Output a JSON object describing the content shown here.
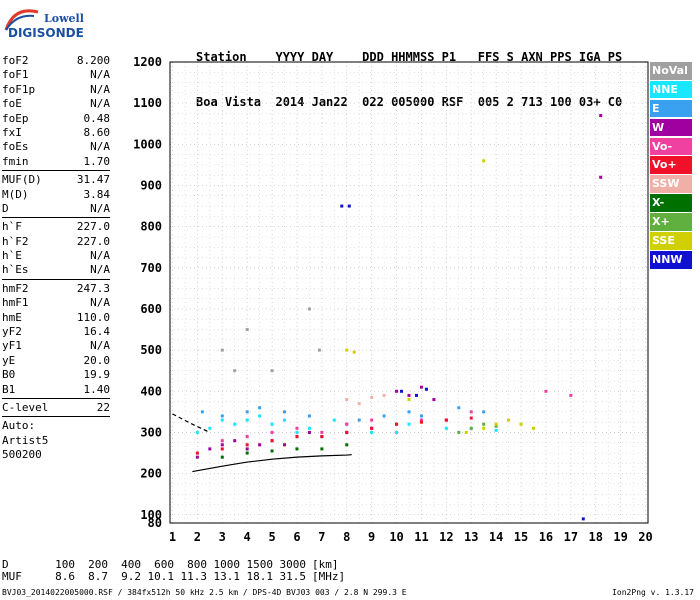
{
  "logo": {
    "line1": "Lowell",
    "line2": "DIGISONDE"
  },
  "header": {
    "labels": "Station    YYYY DAY    DDD HHMMSS P1   FFS S AXN PPS IGA PS",
    "values": "Boa Vista  2014 Jan22  022 005000 RSF  005 2 713 100 03+ C0"
  },
  "params_group1": [
    {
      "name": "foF2",
      "value": "8.200"
    },
    {
      "name": "foF1",
      "value": "N/A"
    },
    {
      "name": "foF1p",
      "value": "N/A"
    },
    {
      "name": "foE",
      "value": "N/A"
    },
    {
      "name": "foEp",
      "value": "0.48"
    },
    {
      "name": "fxI",
      "value": "8.60"
    },
    {
      "name": "foEs",
      "value": "N/A"
    },
    {
      "name": "fmin",
      "value": "1.70"
    }
  ],
  "params_group2": [
    {
      "name": "MUF(D)",
      "value": "31.47"
    },
    {
      "name": "M(D)",
      "value": "3.84"
    },
    {
      "name": "D",
      "value": "N/A"
    }
  ],
  "params_group3": [
    {
      "name": "h`F",
      "value": "227.0"
    },
    {
      "name": "h`F2",
      "value": "227.0"
    },
    {
      "name": "h`E",
      "value": "N/A"
    },
    {
      "name": "h`Es",
      "value": "N/A"
    }
  ],
  "params_group4": [
    {
      "name": "hmF2",
      "value": "247.3"
    },
    {
      "name": "hmF1",
      "value": "N/A"
    },
    {
      "name": "hmE",
      "value": "110.0"
    },
    {
      "name": "yF2",
      "value": "16.4"
    },
    {
      "name": "yF1",
      "value": "N/A"
    },
    {
      "name": "yE",
      "value": "20.0"
    },
    {
      "name": "B0",
      "value": "19.9"
    },
    {
      "name": "B1",
      "value": "1.40"
    }
  ],
  "params_group5": [
    {
      "name": "C-level",
      "value": "22"
    }
  ],
  "auto": {
    "line1": "Auto:",
    "line2": "Artist5",
    "line3": "500200"
  },
  "legend": [
    {
      "label": "NoVal",
      "color": "#a0a0a0"
    },
    {
      "label": "NNE",
      "color": "#19e6ff"
    },
    {
      "label": "E",
      "color": "#3aa0f0"
    },
    {
      "label": "W",
      "color": "#a000a0"
    },
    {
      "label": "Vo-",
      "color": "#f040a0"
    },
    {
      "label": "Vo+",
      "color": "#f0102a"
    },
    {
      "label": "SSW",
      "color": "#f0b0a8"
    },
    {
      "label": "X-",
      "color": "#007000"
    },
    {
      "label": "X+",
      "color": "#60b040"
    },
    {
      "label": "SSE",
      "color": "#d0d000"
    },
    {
      "label": "NNW",
      "color": "#1010d0"
    }
  ],
  "muf_table": {
    "d_label": "D",
    "muf_label": "MUF",
    "d_values": [
      "100",
      "200",
      "400",
      "600",
      "800",
      "1000",
      "1500",
      "3000"
    ],
    "d_unit": "[km]",
    "muf_values": [
      "8.6",
      "8.7",
      "9.2",
      "10.1",
      "11.3",
      "13.1",
      "18.1",
      "31.5"
    ],
    "muf_unit": "[MHz]"
  },
  "footer": {
    "left": "BVJ03_2014022005000.RSF / 384fx512h 50 kHz 2.5 km / DPS-4D BVJ03 003 / 2.8 N 299.3 E",
    "right": "Ion2Png v. 1.3.17"
  },
  "chart_data": {
    "type": "scatter",
    "xlabel": "",
    "ylabel": "",
    "xlim": [
      0.9,
      20.1
    ],
    "ylim": [
      80,
      1200
    ],
    "x_ticks": [
      1,
      2,
      3,
      4,
      5,
      6,
      7,
      8,
      9,
      10,
      11,
      12,
      13,
      14,
      15,
      16,
      17,
      18,
      19,
      20
    ],
    "y_ticks": [
      80,
      100,
      200,
      300,
      400,
      500,
      600,
      700,
      800,
      900,
      1000,
      1100,
      1200
    ],
    "grid": true,
    "trace_F2": {
      "x": [
        1.8,
        3,
        4,
        5,
        6,
        7,
        8,
        8.2
      ],
      "y": [
        205,
        218,
        228,
        235,
        240,
        243,
        245,
        246
      ],
      "color": "#000000"
    },
    "trace_upper": {
      "x": [
        1.0,
        1.8,
        2.5
      ],
      "y": [
        345,
        320,
        300
      ],
      "color": "#000000"
    },
    "series": [
      {
        "name": "NNE",
        "color": "#19e6ff",
        "points": [
          [
            2,
            300
          ],
          [
            2.5,
            310
          ],
          [
            3,
            330
          ],
          [
            3.5,
            320
          ],
          [
            4,
            330
          ],
          [
            4.5,
            340
          ],
          [
            5,
            320
          ],
          [
            5.5,
            330
          ],
          [
            6,
            300
          ],
          [
            6.5,
            310
          ],
          [
            7,
            290
          ],
          [
            7.5,
            330
          ],
          [
            8,
            300
          ],
          [
            9,
            300
          ],
          [
            10,
            300
          ],
          [
            10.5,
            320
          ],
          [
            11,
            330
          ],
          [
            12,
            310
          ],
          [
            13,
            310
          ],
          [
            14,
            305
          ]
        ]
      },
      {
        "name": "E",
        "color": "#3aa0f0",
        "points": [
          [
            2.2,
            350
          ],
          [
            3,
            340
          ],
          [
            4,
            350
          ],
          [
            4.5,
            360
          ],
          [
            5.5,
            350
          ],
          [
            6.5,
            340
          ],
          [
            8,
            320
          ],
          [
            8.5,
            330
          ],
          [
            9.5,
            340
          ],
          [
            10.5,
            350
          ],
          [
            11,
            340
          ],
          [
            12.5,
            360
          ],
          [
            13.5,
            350
          ]
        ]
      },
      {
        "name": "W",
        "color": "#a000a0",
        "points": [
          [
            2,
            240
          ],
          [
            2.5,
            260
          ],
          [
            3,
            270
          ],
          [
            3.5,
            280
          ],
          [
            4,
            260
          ],
          [
            4.5,
            270
          ],
          [
            5,
            280
          ],
          [
            5.5,
            270
          ],
          [
            6,
            290
          ],
          [
            6.5,
            300
          ],
          [
            7,
            290
          ],
          [
            8,
            300
          ],
          [
            9,
            310
          ],
          [
            10,
            400
          ],
          [
            10.5,
            390
          ],
          [
            11,
            410
          ],
          [
            11.5,
            380
          ],
          [
            12,
            330
          ],
          [
            18.2,
            1070
          ],
          [
            18.2,
            920
          ]
        ]
      },
      {
        "name": "Vo-",
        "color": "#f040a0",
        "points": [
          [
            3,
            280
          ],
          [
            4,
            290
          ],
          [
            5,
            300
          ],
          [
            6,
            310
          ],
          [
            7,
            300
          ],
          [
            8,
            320
          ],
          [
            9,
            330
          ],
          [
            10,
            320
          ],
          [
            11,
            330
          ],
          [
            12,
            330
          ],
          [
            13,
            350
          ],
          [
            16,
            400
          ],
          [
            17,
            390
          ]
        ]
      },
      {
        "name": "Vo+",
        "color": "#f0102a",
        "points": [
          [
            2,
            250
          ],
          [
            3,
            260
          ],
          [
            4,
            270
          ],
          [
            5,
            280
          ],
          [
            6,
            290
          ],
          [
            7,
            290
          ],
          [
            8,
            300
          ],
          [
            9,
            310
          ],
          [
            10,
            320
          ],
          [
            11,
            325
          ],
          [
            12,
            330
          ],
          [
            13,
            335
          ]
        ]
      },
      {
        "name": "SSW",
        "color": "#f0b0a8",
        "points": [
          [
            8,
            380
          ],
          [
            9,
            385
          ],
          [
            9.5,
            390
          ],
          [
            8.5,
            370
          ]
        ]
      },
      {
        "name": "X-",
        "color": "#007000",
        "points": [
          [
            3,
            240
          ],
          [
            4,
            250
          ],
          [
            5,
            255
          ],
          [
            6,
            260
          ],
          [
            7,
            260
          ],
          [
            8,
            270
          ]
        ]
      },
      {
        "name": "X+",
        "color": "#60b040",
        "points": [
          [
            12.5,
            300
          ],
          [
            13,
            310
          ],
          [
            13.5,
            320
          ],
          [
            14,
            315
          ]
        ]
      },
      {
        "name": "SSE",
        "color": "#d0d000",
        "points": [
          [
            8,
            500
          ],
          [
            8.3,
            495
          ],
          [
            12.8,
            300
          ],
          [
            13.5,
            310
          ],
          [
            14,
            320
          ],
          [
            14.5,
            330
          ],
          [
            15,
            320
          ],
          [
            15.5,
            310
          ],
          [
            10.5,
            380
          ],
          [
            13.5,
            960
          ]
        ]
      },
      {
        "name": "NNW",
        "color": "#1010d0",
        "points": [
          [
            7.8,
            850
          ],
          [
            8.1,
            850
          ],
          [
            10.2,
            400
          ],
          [
            10.8,
            390
          ],
          [
            11.2,
            405
          ],
          [
            17.5,
            90
          ]
        ]
      },
      {
        "name": "NoVal",
        "color": "#a0a0a0",
        "points": [
          [
            3,
            500
          ],
          [
            4,
            550
          ],
          [
            5,
            450
          ],
          [
            6.5,
            600
          ],
          [
            6.9,
            500
          ],
          [
            3.5,
            450
          ]
        ]
      }
    ]
  }
}
